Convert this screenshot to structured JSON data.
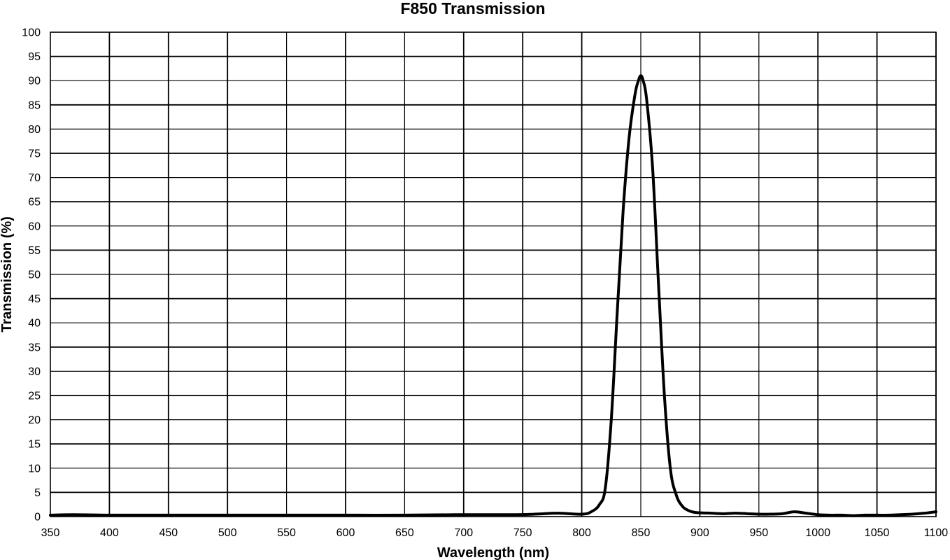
{
  "chart_data": {
    "type": "line",
    "title": "F850 Transmission",
    "xlabel": "Wavelength (nm)",
    "ylabel": "Transmission (%)",
    "xlim": [
      350,
      1100
    ],
    "ylim": [
      0,
      100
    ],
    "x_ticks": [
      350,
      400,
      450,
      500,
      550,
      600,
      650,
      700,
      750,
      800,
      850,
      900,
      950,
      1000,
      1050,
      1100
    ],
    "y_ticks": [
      0,
      5,
      10,
      15,
      20,
      25,
      30,
      35,
      40,
      45,
      50,
      55,
      60,
      65,
      70,
      75,
      80,
      85,
      90,
      95,
      100
    ],
    "grid": true,
    "line_color": "#000000",
    "series": [
      {
        "x": [
          350,
          370,
          400,
          450,
          500,
          550,
          600,
          650,
          700,
          740,
          760,
          780,
          800,
          808,
          815,
          820,
          825,
          830,
          835,
          840,
          845,
          848,
          850,
          852,
          855,
          860,
          865,
          870,
          875,
          880,
          885,
          890,
          895,
          900,
          910,
          920,
          930,
          940,
          950,
          960,
          970,
          980,
          990,
          1000,
          1010,
          1020,
          1030,
          1040,
          1050,
          1060,
          1070,
          1080,
          1090,
          1100
        ],
        "y": [
          0.3,
          0.4,
          0.3,
          0.3,
          0.3,
          0.3,
          0.3,
          0.3,
          0.4,
          0.4,
          0.5,
          0.7,
          0.5,
          1.0,
          2.5,
          6.0,
          20.0,
          42.0,
          63.0,
          78.0,
          87.0,
          90.0,
          91.0,
          90.0,
          86.0,
          72.0,
          48.0,
          25.0,
          10.0,
          4.5,
          2.2,
          1.3,
          0.9,
          0.8,
          0.7,
          0.6,
          0.7,
          0.6,
          0.5,
          0.5,
          0.6,
          1.0,
          0.7,
          0.4,
          0.3,
          0.3,
          0.2,
          0.3,
          0.3,
          0.3,
          0.4,
          0.5,
          0.7,
          1.0
        ]
      }
    ]
  }
}
